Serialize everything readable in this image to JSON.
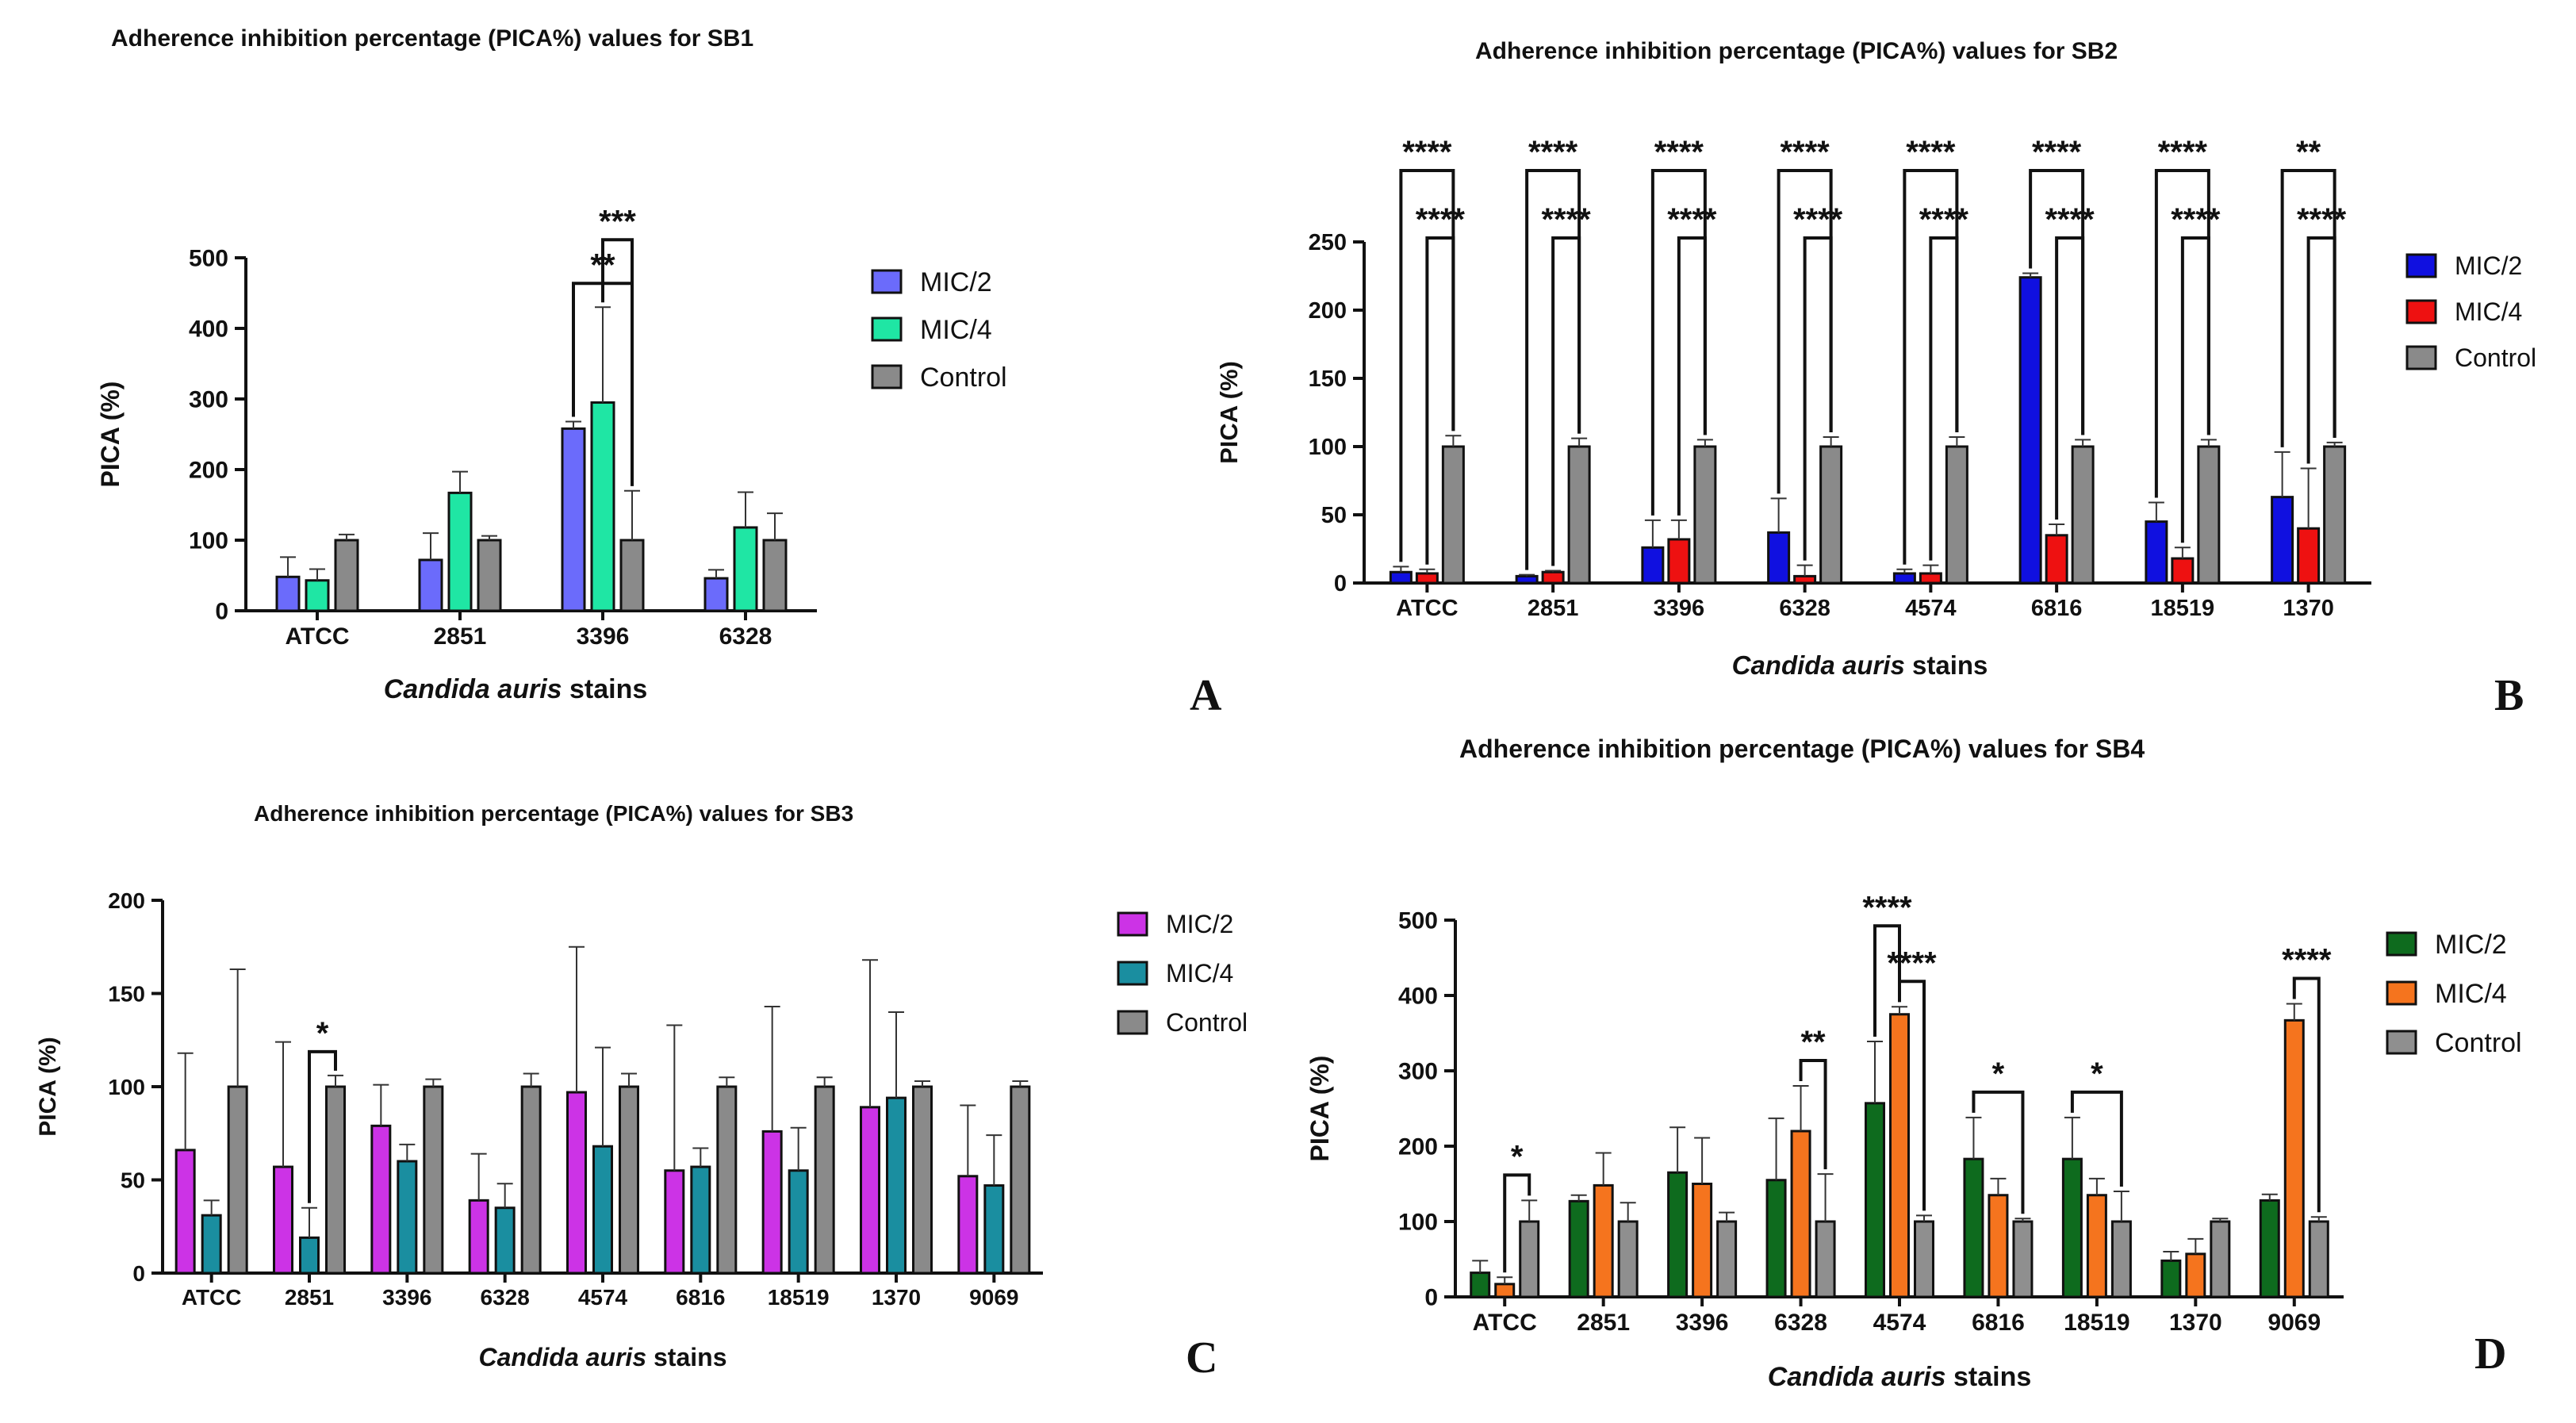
{
  "chart_data": [
    {
      "panel": "A",
      "type": "bar",
      "title": "Adherence inhibition percentage (PICA%) values for SB1",
      "xlabel_italic": "Candida auris",
      "xlabel_rest": " stains",
      "ylabel": "PICA (%)",
      "ylim": [
        0,
        500
      ],
      "yticks": [
        0,
        100,
        200,
        300,
        400,
        500
      ],
      "categories": [
        "ATCC",
        "2851",
        "3396",
        "6328"
      ],
      "series": [
        {
          "name": "MIC/2",
          "color": "#6b6bfb",
          "values": [
            48,
            72,
            258,
            46
          ],
          "errors": [
            28,
            38,
            10,
            12
          ]
        },
        {
          "name": "MIC/4",
          "color": "#1fe6a4",
          "values": [
            43,
            167,
            295,
            118
          ],
          "errors": [
            16,
            30,
            135,
            50
          ]
        },
        {
          "name": "Control",
          "color": "#8a8a8a",
          "values": [
            100,
            100,
            100,
            100
          ],
          "errors": [
            8,
            6,
            70,
            38
          ]
        }
      ],
      "significance": [
        {
          "category": 2,
          "from": 0,
          "to": 2,
          "label": "**",
          "level": 0
        },
        {
          "category": 2,
          "from": 1,
          "to": 2,
          "label": "***",
          "level": 1
        }
      ]
    },
    {
      "panel": "B",
      "type": "bar",
      "title": "Adherence inhibition percentage (PICA%) values for SB2",
      "xlabel_italic": "Candida auris",
      "xlabel_rest": " stains",
      "ylabel": "PICA (%)",
      "ylim": [
        0,
        250
      ],
      "yticks": [
        0,
        50,
        100,
        150,
        200,
        250
      ],
      "categories": [
        "ATCC",
        "2851",
        "3396",
        "6328",
        "4574",
        "6816",
        "18519",
        "1370"
      ],
      "series": [
        {
          "name": "MIC/2",
          "color": "#1010e0",
          "values": [
            8,
            5,
            26,
            37,
            7,
            224,
            45,
            63
          ],
          "errors": [
            4,
            1,
            20,
            25,
            3,
            3,
            14,
            33
          ]
        },
        {
          "name": "MIC/4",
          "color": "#ee1111",
          "values": [
            7,
            8,
            32,
            5,
            7,
            35,
            18,
            40
          ],
          "errors": [
            3,
            1,
            14,
            8,
            6,
            8,
            8,
            44
          ]
        },
        {
          "name": "Control",
          "color": "#8a8a8a",
          "values": [
            100,
            100,
            100,
            100,
            100,
            100,
            100,
            100
          ],
          "errors": [
            8,
            6,
            5,
            7,
            7,
            5,
            5,
            3
          ]
        }
      ],
      "significance": [
        {
          "category": 0,
          "from": 0,
          "to": 2,
          "label": "****",
          "level": 0
        },
        {
          "category": 0,
          "from": 1,
          "to": 2,
          "label": "****",
          "level": 1
        },
        {
          "category": 1,
          "from": 0,
          "to": 2,
          "label": "****",
          "level": 0
        },
        {
          "category": 1,
          "from": 1,
          "to": 2,
          "label": "****",
          "level": 1
        },
        {
          "category": 2,
          "from": 0,
          "to": 2,
          "label": "****",
          "level": 0
        },
        {
          "category": 2,
          "from": 1,
          "to": 2,
          "label": "****",
          "level": 1
        },
        {
          "category": 3,
          "from": 0,
          "to": 2,
          "label": "****",
          "level": 0
        },
        {
          "category": 3,
          "from": 1,
          "to": 2,
          "label": "****",
          "level": 1
        },
        {
          "category": 4,
          "from": 0,
          "to": 2,
          "label": "****",
          "level": 0
        },
        {
          "category": 4,
          "from": 1,
          "to": 2,
          "label": "****",
          "level": 1
        },
        {
          "category": 5,
          "from": 0,
          "to": 2,
          "label": "****",
          "level": 0
        },
        {
          "category": 5,
          "from": 1,
          "to": 2,
          "label": "****",
          "level": 1
        },
        {
          "category": 6,
          "from": 0,
          "to": 2,
          "label": "****",
          "level": 0
        },
        {
          "category": 6,
          "from": 1,
          "to": 2,
          "label": "****",
          "level": 1
        },
        {
          "category": 7,
          "from": 0,
          "to": 2,
          "label": "**",
          "level": 0
        },
        {
          "category": 7,
          "from": 1,
          "to": 2,
          "label": "****",
          "level": 1
        }
      ]
    },
    {
      "panel": "C",
      "type": "bar",
      "title": "Adherence inhibition percentage (PICA%) values for SB3",
      "xlabel_italic": "Candida auris",
      "xlabel_rest": " stains",
      "ylabel": "PICA (%)",
      "ylim": [
        0,
        200
      ],
      "yticks": [
        0,
        50,
        100,
        150,
        200
      ],
      "categories": [
        "ATCC",
        "2851",
        "3396",
        "6328",
        "4574",
        "6816",
        "18519",
        "1370",
        "9069"
      ],
      "series": [
        {
          "name": "MIC/2",
          "color": "#cc33e6",
          "values": [
            66,
            57,
            79,
            39,
            97,
            55,
            76,
            89,
            52
          ],
          "errors": [
            52,
            67,
            22,
            25,
            78,
            78,
            67,
            79,
            38
          ]
        },
        {
          "name": "MIC/4",
          "color": "#1a8ea0",
          "values": [
            31,
            19,
            60,
            35,
            68,
            57,
            55,
            94,
            47
          ],
          "errors": [
            8,
            16,
            9,
            13,
            53,
            10,
            23,
            46,
            27
          ]
        },
        {
          "name": "Control",
          "color": "#8a8a8a",
          "values": [
            100,
            100,
            100,
            100,
            100,
            100,
            100,
            100,
            100
          ],
          "errors": [
            63,
            6,
            4,
            7,
            7,
            5,
            5,
            3,
            3
          ]
        }
      ],
      "significance": [
        {
          "category": 1,
          "from": 1,
          "to": 2,
          "label": "*",
          "level": 0
        }
      ]
    },
    {
      "panel": "D",
      "type": "bar",
      "title": "Adherence inhibition percentage (PICA%) values for SB4",
      "xlabel_italic": "Candida auris",
      "xlabel_rest": " stains",
      "ylabel": "PICA (%)",
      "ylim": [
        0,
        500
      ],
      "yticks": [
        0,
        100,
        200,
        300,
        400,
        500
      ],
      "categories": [
        "ATCC",
        "2851",
        "3396",
        "6328",
        "4574",
        "6816",
        "18519",
        "1370",
        "9069"
      ],
      "series": [
        {
          "name": "MIC/2",
          "color": "#0e6b1e",
          "values": [
            32,
            127,
            165,
            155,
            257,
            183,
            183,
            48,
            128
          ],
          "errors": [
            16,
            8,
            60,
            82,
            82,
            55,
            55,
            12,
            8
          ]
        },
        {
          "name": "MIC/4",
          "color": "#f5741e",
          "values": [
            17,
            148,
            150,
            220,
            375,
            135,
            135,
            57,
            367
          ],
          "errors": [
            9,
            43,
            61,
            60,
            10,
            22,
            22,
            20,
            22
          ]
        },
        {
          "name": "Control",
          "color": "#8f8f8f",
          "values": [
            100,
            100,
            100,
            100,
            100,
            100,
            100,
            100,
            100
          ],
          "errors": [
            28,
            25,
            12,
            63,
            8,
            4,
            40,
            4,
            6
          ]
        }
      ],
      "significance": [
        {
          "category": 0,
          "from": 1,
          "to": 2,
          "label": "*",
          "level": 0
        },
        {
          "category": 3,
          "from": 1,
          "to": 2,
          "label": "**",
          "level": 0
        },
        {
          "category": 4,
          "from": 0,
          "to": 1,
          "label": "****",
          "level": 1
        },
        {
          "category": 4,
          "from": 1,
          "to": 2,
          "label": "****",
          "level": 0
        },
        {
          "category": 5,
          "from": 0,
          "to": 2,
          "label": "*",
          "level": 0
        },
        {
          "category": 6,
          "from": 0,
          "to": 2,
          "label": "*",
          "level": 0
        },
        {
          "category": 8,
          "from": 1,
          "to": 2,
          "label": "****",
          "level": 0
        }
      ]
    }
  ]
}
